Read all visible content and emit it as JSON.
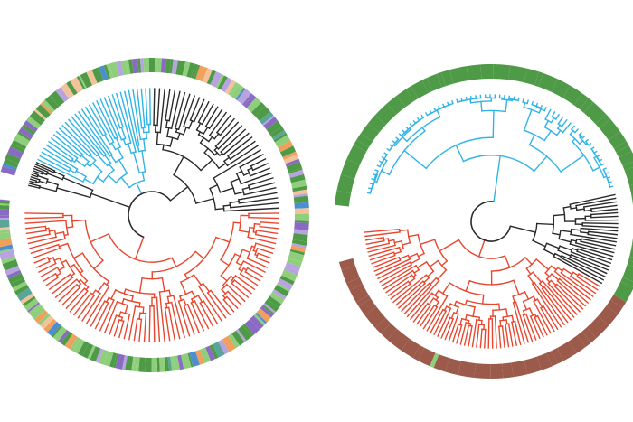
{
  "colors": {
    "background": "#ffffff",
    "clade_blue": "#31b4e6",
    "clade_black": "#2b2b2b",
    "clade_red": "#e8472f",
    "ring_green": "#4f9a47",
    "ring_light_green": "#8fcf7c",
    "ring_brown": "#9b5a4a",
    "ring_purple": "#8a6bc4",
    "ring_lavender": "#b7a3df",
    "ring_blue": "#4c8fd0",
    "ring_orange": "#f0a05a",
    "ring_peach": "#f2c39b",
    "ring_teal": "#5aa59a"
  },
  "trees": [
    {
      "name": "left-tree",
      "clades": [
        {
          "color_key": "clade_blue",
          "start_deg": 205,
          "end_deg": 270,
          "leaves": 34,
          "style": "comb"
        },
        {
          "color_key": "clade_black",
          "start_deg": 270,
          "end_deg": 358,
          "leaves": 38,
          "style": "comb"
        },
        {
          "color_key": "clade_black",
          "start_deg": 193,
          "end_deg": 205,
          "leaves": 12,
          "style": "fan"
        },
        {
          "color_key": "clade_red",
          "start_deg": -2,
          "end_deg": 182,
          "leaves": 80,
          "style": "comb"
        }
      ],
      "ring": {
        "gap_start_deg": 186,
        "gap_end_deg": 196,
        "pattern": "mixed"
      }
    },
    {
      "name": "right-tree",
      "clades": [
        {
          "color_key": "clade_blue",
          "start_deg": 192,
          "end_deg": 345,
          "leaves": 70,
          "style": "fan"
        },
        {
          "color_key": "clade_black",
          "start_deg": -13,
          "end_deg": 30,
          "leaves": 26,
          "style": "comb"
        },
        {
          "color_key": "clade_red",
          "start_deg": 30,
          "end_deg": 176,
          "leaves": 80,
          "style": "comb"
        }
      ],
      "ring": {
        "gap_start_deg": 165,
        "gap_end_deg": 186,
        "pattern": "green-brown",
        "split_deg": 30
      }
    }
  ]
}
